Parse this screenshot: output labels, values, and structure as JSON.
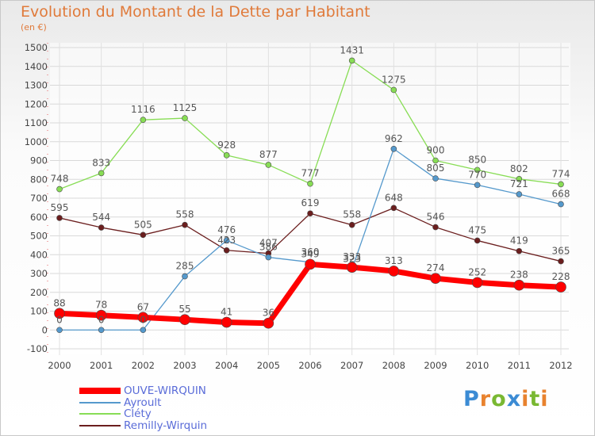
{
  "title": "Evolution du Montant de la Dette par Habitant",
  "unit": "(en €)",
  "logo": "Proxiti",
  "chart_data": {
    "type": "line",
    "title": "Evolution du Montant de la Dette par Habitant",
    "subtitle": "(en €)",
    "xlabel": "",
    "ylabel": "",
    "x": [
      "2000",
      "2001",
      "2002",
      "2003",
      "2004",
      "2005",
      "2006",
      "2007",
      "2008",
      "2009",
      "2010",
      "2011",
      "2012"
    ],
    "ylim": [
      -100,
      1500
    ],
    "yticks": [
      -100,
      0,
      100,
      200,
      300,
      400,
      500,
      600,
      700,
      800,
      900,
      1000,
      1100,
      1200,
      1300,
      1400,
      1500
    ],
    "grid": true,
    "legend_position": "bottom-left",
    "series": [
      {
        "name": "Cléty",
        "color": "#88dd55",
        "width": 1.3,
        "marker": 3.5,
        "values": [
          748,
          833,
          1116,
          1125,
          928,
          877,
          777,
          1431,
          1275,
          900,
          850,
          802,
          774
        ]
      },
      {
        "name": "Remilly-Wirquin",
        "color": "#6b1e1e",
        "width": 1.3,
        "marker": 3.5,
        "values": [
          595,
          544,
          505,
          558,
          423,
          407,
          619,
          558,
          648,
          546,
          475,
          419,
          365
        ]
      },
      {
        "name": "Ayroult",
        "color": "#5599cc",
        "width": 1.3,
        "marker": 3.5,
        "values": [
          0,
          0,
          0,
          285,
          476,
          386,
          360,
          323,
          962,
          805,
          770,
          721,
          668
        ]
      },
      {
        "name": "OUVE-WIRQUIN",
        "color": "#ff0000",
        "width": 7,
        "marker": 6.5,
        "values": [
          88,
          78,
          67,
          55,
          41,
          36,
          349,
          333,
          313,
          274,
          252,
          238,
          228
        ]
      }
    ]
  }
}
